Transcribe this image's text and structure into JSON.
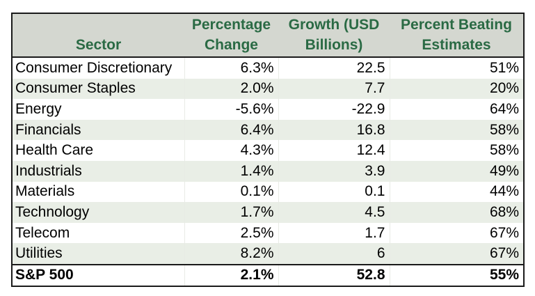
{
  "table": {
    "headers": [
      "Sector",
      "Percentage Change",
      "Growth (USD Billions)",
      "Percent Beating Estimates"
    ],
    "rows": [
      [
        "Consumer Discretionary",
        "6.3%",
        "22.5",
        "51%"
      ],
      [
        "Consumer Staples",
        "2.0%",
        "7.7",
        "20%"
      ],
      [
        "Energy",
        "-5.6%",
        "-22.9",
        "64%"
      ],
      [
        "Financials",
        "6.4%",
        "16.8",
        "58%"
      ],
      [
        "Health Care",
        "4.3%",
        "12.4",
        "58%"
      ],
      [
        "Industrials",
        "1.4%",
        "3.9",
        "49%"
      ],
      [
        "Materials",
        "0.1%",
        "0.1",
        "44%"
      ],
      [
        "Technology",
        "1.7%",
        "4.5",
        "68%"
      ],
      [
        "Telecom",
        "2.5%",
        "1.7",
        "67%"
      ],
      [
        "Utilities",
        "8.2%",
        "6",
        "67%"
      ]
    ],
    "total": [
      "S&P 500",
      "2.1%",
      "52.8",
      "55%"
    ]
  },
  "colors": {
    "header_background": "#d4d7d0",
    "header_text": "#2a6a44",
    "row_shade": "#e9eee6",
    "border": "#1a1a1a"
  }
}
